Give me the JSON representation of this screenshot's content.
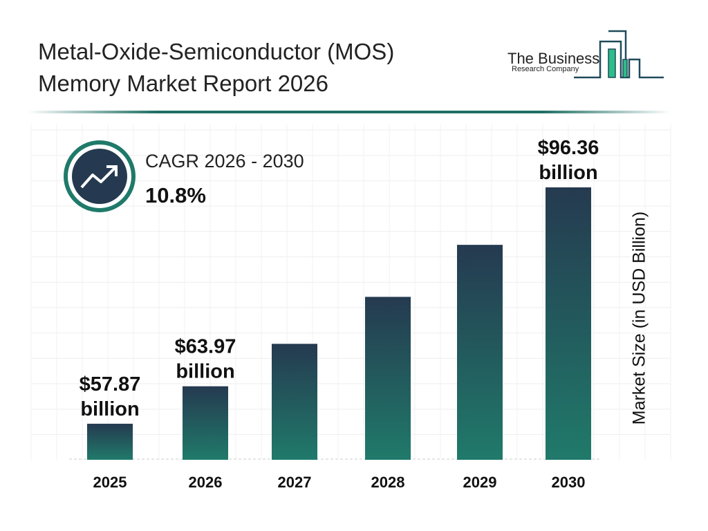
{
  "header": {
    "title_line1": "Metal-Oxide-Semiconductor (MOS)",
    "title_line2": "Memory Market Report 2026"
  },
  "logo": {
    "line1": "The Business",
    "line2": "Research Company"
  },
  "cagr": {
    "label": "CAGR 2026 - 2030",
    "value": "10.8%",
    "icon": "trend-up-icon"
  },
  "colors": {
    "bar_top": "#253a50",
    "bar_bottom": "#207a6a",
    "accent": "#1f7a6a",
    "logo_green": "#2dbd8a"
  },
  "chart_data": {
    "type": "bar",
    "title": "",
    "xlabel": "",
    "ylabel": "Market Size (in USD Billion)",
    "categories": [
      "2025",
      "2026",
      "2027",
      "2028",
      "2029",
      "2030"
    ],
    "values": [
      57.87,
      63.97,
      70.88,
      78.53,
      87.0,
      96.36
    ],
    "data_labels": [
      [
        "$57.87",
        "billion"
      ],
      [
        "$63.97",
        "billion"
      ],
      null,
      null,
      null,
      [
        "$96.36",
        "billion"
      ]
    ],
    "grid": true,
    "unit": "USD billion"
  }
}
